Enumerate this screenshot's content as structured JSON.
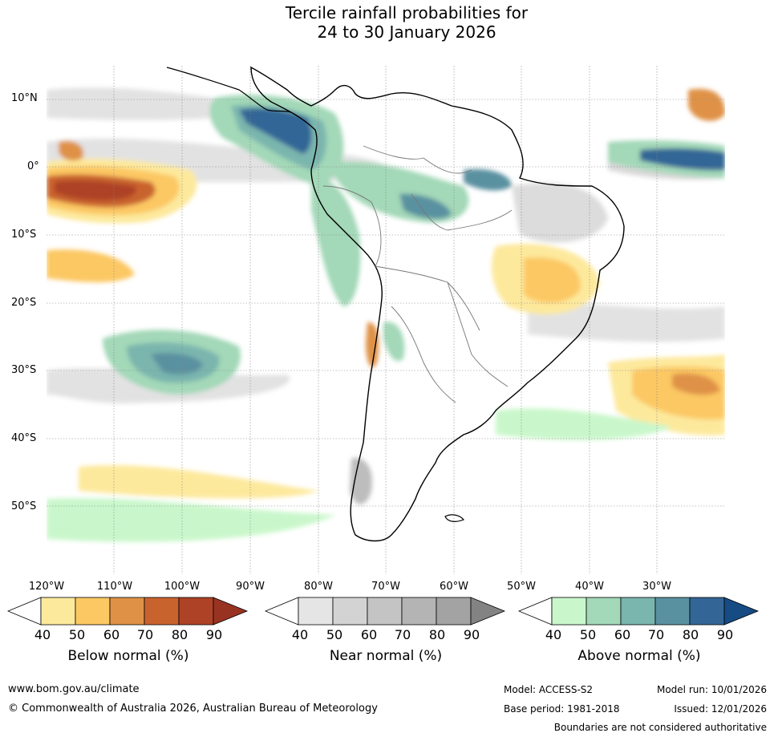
{
  "title_line1": "Tercile rainfall probabilities for",
  "title_line2": "24 to 30 January 2026",
  "lat_labels": [
    "10°N",
    "0°",
    "10°S",
    "20°S",
    "30°S",
    "40°S",
    "50°S"
  ],
  "lon_labels": [
    "120°W",
    "110°W",
    "100°W",
    "90°W",
    "80°W",
    "70°W",
    "60°W",
    "50°W",
    "40°W",
    "30°W"
  ],
  "colorbars": {
    "below": {
      "title": "Below normal (%)",
      "ticks": [
        "40",
        "50",
        "60",
        "70",
        "80",
        "90"
      ],
      "colors": [
        "#ffffff",
        "#fde99c",
        "#fcc863",
        "#df9246",
        "#c9632e",
        "#ad4226",
        "#993321"
      ]
    },
    "near": {
      "title": "Near normal (%)",
      "ticks": [
        "40",
        "50",
        "60",
        "70",
        "80",
        "90"
      ],
      "colors": [
        "#ffffff",
        "#e5e5e5",
        "#d3d3d3",
        "#c4c4c4",
        "#b4b4b4",
        "#a3a3a3",
        "#838383"
      ]
    },
    "above": {
      "title": "Above normal (%)",
      "ticks": [
        "40",
        "50",
        "60",
        "70",
        "80",
        "90"
      ],
      "colors": [
        "#ffffff",
        "#c9f7cb",
        "#a3d8b8",
        "#7ab5ae",
        "#5a91a0",
        "#336696",
        "#164b84"
      ]
    }
  },
  "footer": {
    "website": "www.bom.gov.au/climate",
    "copyright": "© Commonwealth of Australia 2026, Australian Bureau of Meteorology",
    "model": "Model: ACCESS-S2",
    "base_period": "Base period: 1981-2018",
    "model_run": "Model run: 10/01/2026",
    "issued": "Issued: 12/01/2026",
    "disclaimer": "Boundaries are not considered authoritative"
  },
  "map_regions": [
    {
      "category": "near",
      "level": 50,
      "label": "eastern Pacific equatorial band"
    },
    {
      "category": "below",
      "level": 80,
      "label": "equatorial Pacific near 110°W"
    },
    {
      "category": "above",
      "level": 80,
      "label": "Colombia and Panama coast"
    },
    {
      "category": "above",
      "level": 80,
      "label": "equatorial Atlantic near 30°W"
    },
    {
      "category": "above",
      "level": 70,
      "label": "central Amazon"
    },
    {
      "category": "below",
      "level": 60,
      "label": "eastern Brazil"
    },
    {
      "category": "above",
      "level": 70,
      "label": "South Pacific near 100°W 30°S"
    },
    {
      "category": "below",
      "level": 70,
      "label": "South Atlantic near 30°W 30°S"
    },
    {
      "category": "near",
      "level": 50,
      "label": "Patagonia"
    }
  ]
}
